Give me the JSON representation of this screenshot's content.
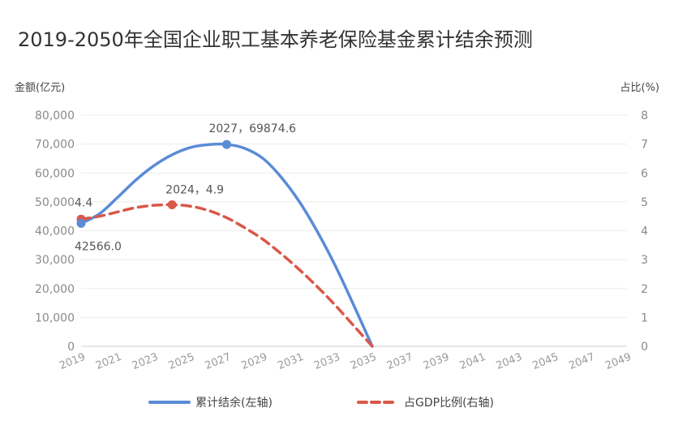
{
  "chart_data": {
    "type": "line",
    "title": "2019-2050年全国企业职工基本养老保险基金累计结余预测",
    "ylabel_left": "金额(亿元)",
    "ylabel_right": "占比(%)",
    "x_ticks": [
      "2019",
      "2021",
      "2023",
      "2025",
      "2027",
      "2029",
      "2031",
      "2033",
      "2035",
      "2037",
      "2039",
      "2041",
      "2043",
      "2045",
      "2047",
      "2049"
    ],
    "x_range": [
      2019,
      2049
    ],
    "y_left": {
      "range": [
        0,
        80000
      ],
      "ticks": [
        "80,000",
        "70,000",
        "60,000",
        "50,000",
        "40,000",
        "30,000",
        "20,000",
        "10,000",
        "0"
      ],
      "tick_values": [
        80000,
        70000,
        60000,
        50000,
        40000,
        30000,
        20000,
        10000,
        0
      ]
    },
    "y_right": {
      "range": [
        0,
        8
      ],
      "ticks": [
        "8",
        "7",
        "6",
        "5",
        "4",
        "3",
        "2",
        "1",
        "0"
      ],
      "tick_values": [
        8,
        7,
        6,
        5,
        4,
        3,
        2,
        1,
        0
      ]
    },
    "grid": true,
    "legend_position": "bottom",
    "series": [
      {
        "name": "累计结余(左轴)",
        "axis": "left",
        "color": "#5b8bd6",
        "style": "solid",
        "x": [
          2019,
          2020,
          2021,
          2022,
          2023,
          2024,
          2025,
          2026,
          2027,
          2028,
          2029,
          2030,
          2031,
          2032,
          2033,
          2034,
          2035
        ],
        "values": [
          42566.0,
          45800,
          51500,
          57500,
          62500,
          66300,
          68800,
          69800,
          69874.6,
          68500,
          65000,
          58500,
          50000,
          39500,
          27500,
          14000,
          0
        ]
      },
      {
        "name": "占GDP比例(右轴)",
        "axis": "right",
        "color": "#d9584a",
        "style": "dashed",
        "x": [
          2019,
          2020,
          2021,
          2022,
          2023,
          2024,
          2025,
          2026,
          2027,
          2028,
          2029,
          2030,
          2031,
          2032,
          2033,
          2034,
          2035
        ],
        "values": [
          4.4,
          4.5,
          4.65,
          4.8,
          4.88,
          4.9,
          4.85,
          4.7,
          4.45,
          4.1,
          3.7,
          3.2,
          2.65,
          2.05,
          1.4,
          0.7,
          0
        ]
      }
    ],
    "annotations": [
      {
        "label": "4.4",
        "series": 1,
        "x": 2019,
        "y": 4.4
      },
      {
        "label": "42566.0",
        "series": 0,
        "x": 2019,
        "y": 42566.0
      },
      {
        "label": "2024，4.9",
        "series": 1,
        "x": 2024,
        "y": 4.9
      },
      {
        "label": "2027，69874.6",
        "series": 0,
        "x": 2027,
        "y": 69874.6
      }
    ]
  }
}
